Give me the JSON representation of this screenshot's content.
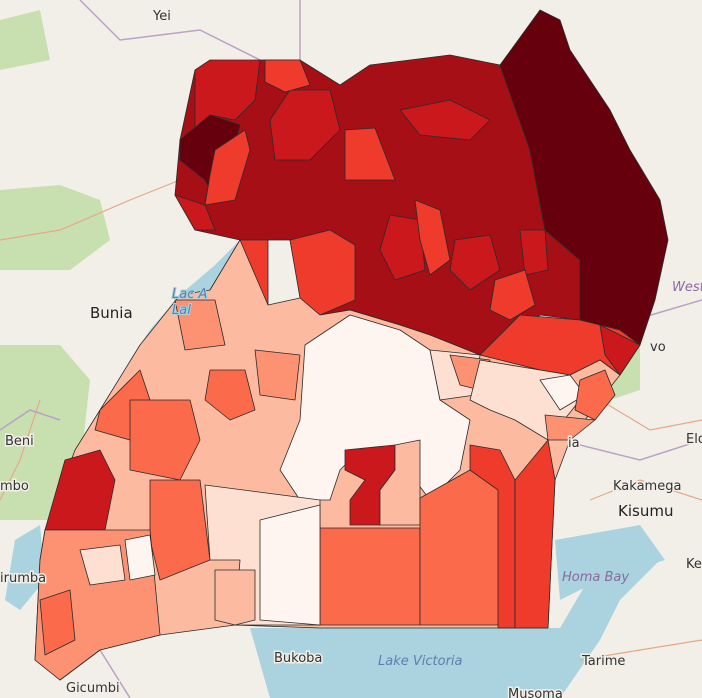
{
  "map": {
    "color_scale": [
      "#fff5f0",
      "#fee0d2",
      "#fcbba1",
      "#fc9272",
      "#fb6a4a",
      "#ef3b2c",
      "#cb181d",
      "#a50f15",
      "#67000d"
    ],
    "basemap_colors": {
      "land": "#f2efe9",
      "water": "#aad3df",
      "forest": "#c8dfb0"
    },
    "labels": {
      "yei": "Yei",
      "bunia": "Bunia",
      "lac_albert_1": "Lac A",
      "lac_albert_2": "Lal",
      "beni": "Beni",
      "butembo": "mbo",
      "kirumba": "irumba",
      "bukoba": "Bukoba",
      "lake_victoria": "Lake Victoria",
      "tarime": "Tarime",
      "musoma": "Musoma",
      "gicumbi": "Gicumbi",
      "homa_bay": "Homa Bay",
      "kisumu": "Kisumu",
      "kakamega": "Kakamega",
      "eldoret": "Eld",
      "kenya": "Ken",
      "west_pokot": "West P",
      "tororo": "vo",
      "busia": "ia"
    }
  }
}
